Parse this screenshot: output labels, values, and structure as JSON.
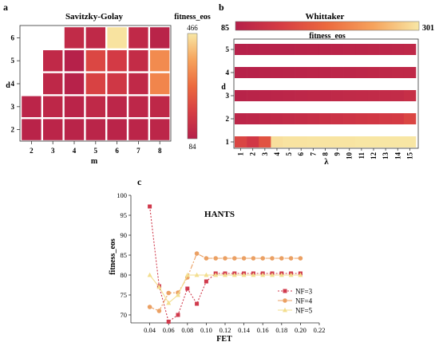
{
  "colorscale": {
    "low": "#b5204a",
    "midlow": "#d63d44",
    "mid": "#ec6a3e",
    "midhigh": "#f6a35c",
    "high": "#f8e7a5"
  },
  "chart_data": [
    {
      "panel_label": "a",
      "type": "heatmap",
      "title": "Savitzky-Golay",
      "xlabel": "m",
      "ylabel": "d",
      "x_ticks": [
        "2",
        "3",
        "4",
        "5",
        "6",
        "7",
        "8"
      ],
      "y_ticks": [
        "2",
        "3",
        "4",
        "5",
        "6"
      ],
      "colorbar": {
        "title": "fitness_eos",
        "min": 84,
        "max": 466
      },
      "cells": [
        {
          "m": 2,
          "d": 2,
          "value": 95
        },
        {
          "m": 3,
          "d": 2,
          "value": 102
        },
        {
          "m": 4,
          "d": 2,
          "value": 97
        },
        {
          "m": 5,
          "d": 2,
          "value": 99
        },
        {
          "m": 6,
          "d": 2,
          "value": 98
        },
        {
          "m": 7,
          "d": 2,
          "value": 100
        },
        {
          "m": 8,
          "d": 2,
          "value": 103
        },
        {
          "m": 2,
          "d": 3,
          "value": 100
        },
        {
          "m": 3,
          "d": 3,
          "value": 108
        },
        {
          "m": 4,
          "d": 3,
          "value": 98
        },
        {
          "m": 5,
          "d": 3,
          "value": 112
        },
        {
          "m": 6,
          "d": 3,
          "value": 105
        },
        {
          "m": 7,
          "d": 3,
          "value": 106
        },
        {
          "m": 8,
          "d": 3,
          "value": 110
        },
        {
          "m": 3,
          "d": 4,
          "value": 110
        },
        {
          "m": 4,
          "d": 4,
          "value": 90
        },
        {
          "m": 5,
          "d": 4,
          "value": 190
        },
        {
          "m": 6,
          "d": 4,
          "value": 160
        },
        {
          "m": 7,
          "d": 4,
          "value": 115
        },
        {
          "m": 8,
          "d": 4,
          "value": 320
        },
        {
          "m": 3,
          "d": 5,
          "value": 115
        },
        {
          "m": 4,
          "d": 5,
          "value": 88
        },
        {
          "m": 5,
          "d": 5,
          "value": 200
        },
        {
          "m": 6,
          "d": 5,
          "value": 170
        },
        {
          "m": 7,
          "d": 5,
          "value": 125
        },
        {
          "m": 8,
          "d": 5,
          "value": 330
        },
        {
          "m": 4,
          "d": 6,
          "value": 120
        },
        {
          "m": 5,
          "d": 6,
          "value": 112
        },
        {
          "m": 6,
          "d": 6,
          "value": 460
        },
        {
          "m": 7,
          "d": 6,
          "value": 115
        },
        {
          "m": 8,
          "d": 6,
          "value": 96
        }
      ]
    },
    {
      "panel_label": "b",
      "type": "heatmap",
      "title": "Whittaker",
      "xlabel": "λ",
      "ylabel": "d",
      "x_ticks": [
        "1",
        "2",
        "3",
        "4",
        "5",
        "6",
        "7",
        "8",
        "9",
        "10",
        "11",
        "12",
        "13",
        "14",
        "15"
      ],
      "y_ticks": [
        "1",
        "2",
        "3",
        "4",
        "5"
      ],
      "colorbar": {
        "title": "fitness_eos",
        "min": 85,
        "max": 301
      },
      "rows": [
        {
          "d": 1,
          "values": [
            150,
            130,
            165,
            295,
            298,
            298,
            299,
            299,
            299,
            299,
            300,
            300,
            300,
            300,
            300
          ]
        },
        {
          "d": 2,
          "values": [
            96,
            98,
            101,
            103,
            107,
            110,
            113,
            118,
            121,
            124,
            127,
            130,
            133,
            136,
            150
          ]
        },
        {
          "d": 3,
          "values": [
            90,
            92,
            93,
            95,
            96,
            98,
            99,
            100,
            101,
            103,
            104,
            105,
            106,
            107,
            112
          ]
        },
        {
          "d": 4,
          "values": [
            88,
            89,
            90,
            91,
            92,
            93,
            94,
            95,
            96,
            97,
            98,
            99,
            100,
            101,
            102
          ]
        },
        {
          "d": 5,
          "values": [
            86,
            87,
            88,
            88,
            89,
            90,
            91,
            92,
            93,
            94,
            95,
            96,
            97,
            98,
            99
          ]
        }
      ]
    },
    {
      "panel_label": "c",
      "type": "line",
      "title": "HANTS",
      "xlabel": "FET",
      "ylabel": "fitness_eos",
      "xlim": [
        0.02,
        0.22
      ],
      "ylim": [
        68,
        100
      ],
      "x_ticks": [
        "0.04",
        "0.06",
        "0.08",
        "0.10",
        "0.12",
        "0.14",
        "0.16",
        "0.18",
        "0.20",
        "0.22"
      ],
      "y_ticks": [
        "70",
        "75",
        "80",
        "85",
        "90",
        "95",
        "100"
      ],
      "legend_position": "lower-right",
      "x": [
        0.04,
        0.05,
        0.06,
        0.07,
        0.08,
        0.09,
        0.1,
        0.11,
        0.12,
        0.13,
        0.14,
        0.15,
        0.16,
        0.17,
        0.18,
        0.19,
        0.2
      ],
      "series": [
        {
          "name": "NF=3",
          "color": "#d03a4c",
          "marker": "square",
          "dash": "2,2",
          "values": [
            97.2,
            77.2,
            68.3,
            70.0,
            76.6,
            72.8,
            78.4,
            80.4,
            80.4,
            80.4,
            80.4,
            80.4,
            80.4,
            80.4,
            80.4,
            80.4,
            80.4
          ]
        },
        {
          "name": "NF=4",
          "color": "#eba063",
          "marker": "circle",
          "dash": "6,2,2,2",
          "values": [
            72.0,
            71.0,
            75.5,
            75.6,
            79.4,
            85.4,
            84.2,
            84.2,
            84.2,
            84.2,
            84.2,
            84.2,
            84.2,
            84.2,
            84.2,
            84.2,
            84.2
          ]
        },
        {
          "name": "NF=5",
          "color": "#f3de8e",
          "marker": "triangle",
          "dash": "",
          "values": [
            80.0,
            77.0,
            73.0,
            75.0,
            80.0,
            80.0,
            80.0,
            80.0,
            80.0,
            80.0,
            80.0,
            80.0,
            80.0,
            80.0,
            80.0,
            80.0,
            80.0
          ]
        }
      ]
    }
  ]
}
